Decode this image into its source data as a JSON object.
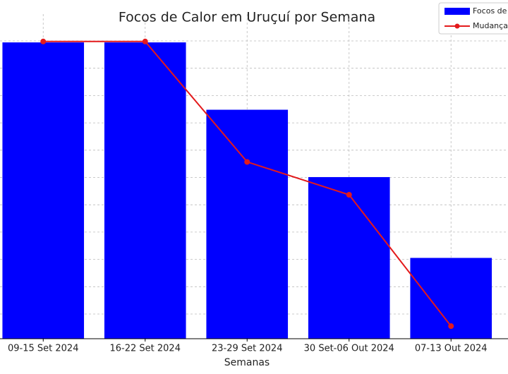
{
  "chart_data": {
    "type": "bar_line",
    "title": "Focos de Calor em Uruçuí por Semana",
    "x_label": "Semanas",
    "categories": [
      "09-15 Set 2024",
      "16-22 Set 2024",
      "23-29 Set 2024",
      "30 Set-06 Out 2024",
      "07-13 Out 2024"
    ],
    "series": [
      {
        "name": "Focos de",
        "color": "#0000ff",
        "type": "bar",
        "values": [
          44,
          44,
          34,
          24,
          12
        ]
      },
      {
        "name": "Mudança",
        "color": "#e31a1c",
        "type": "line",
        "axis": "y2",
        "values": [
          0,
          0,
          -22,
          -28,
          -52
        ]
      }
    ],
    "ylim": [
      0,
      48.2
    ],
    "y2lim": [
      -54.3,
      5
    ],
    "grid": true
  }
}
